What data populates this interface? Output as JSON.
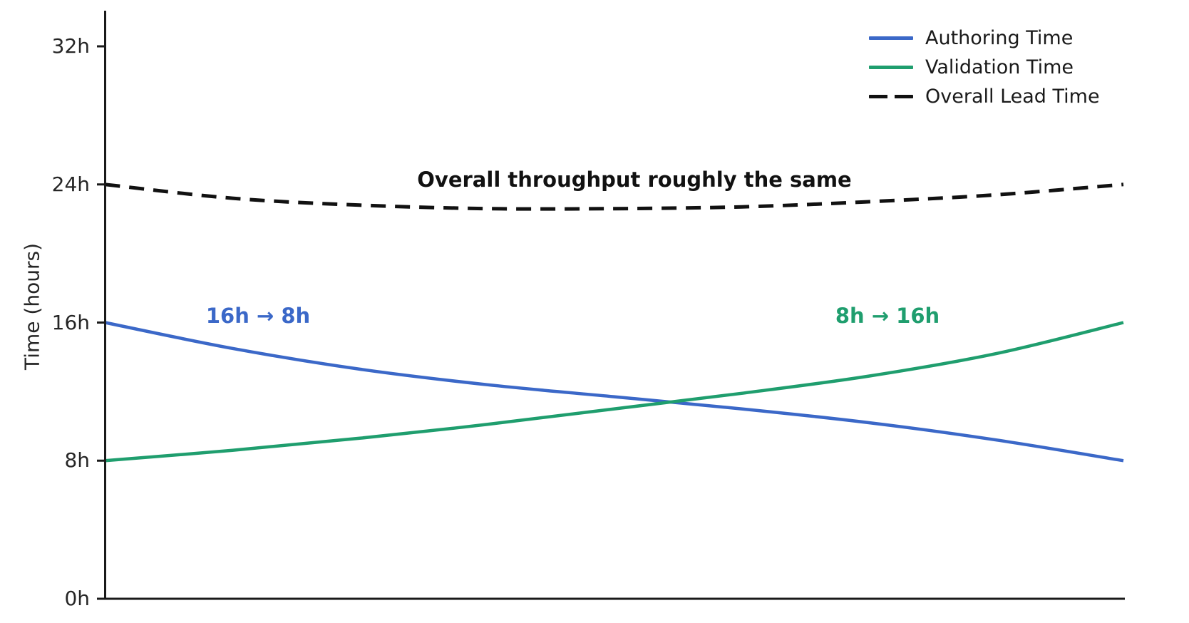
{
  "chart_data": {
    "type": "line",
    "title": "",
    "xlabel": "",
    "ylabel": "Time (hours)",
    "ytick_labels": [
      "0h",
      "8h",
      "16h",
      "24h",
      "32h"
    ],
    "ytick_values": [
      0,
      8,
      16,
      24,
      32
    ],
    "ylim": [
      0,
      34.1
    ],
    "xlim": [
      0,
      1
    ],
    "x_progress": [
      0,
      0.125,
      0.25,
      0.375,
      0.5,
      0.625,
      0.75,
      0.875,
      1
    ],
    "grid": false,
    "legend_position": "upper right",
    "series": [
      {
        "name": "Authoring Time",
        "color": "#3b68c8",
        "line_style": "solid",
        "start_value_hours": 16,
        "end_value_hours": 8,
        "values": [
          16,
          14.5,
          13.3,
          12.4,
          11.7,
          11.0,
          10.2,
          9.2,
          8.0
        ]
      },
      {
        "name": "Validation Time",
        "color": "#1f9e6e",
        "line_style": "solid",
        "start_value_hours": 8,
        "end_value_hours": 16,
        "values": [
          8.0,
          8.6,
          9.3,
          10.1,
          11.0,
          11.9,
          12.9,
          14.2,
          16.0
        ]
      },
      {
        "name": "Overall Lead Time",
        "color": "#111111",
        "line_style": "dashed",
        "start_value_hours": 24,
        "end_value_hours": 24,
        "values": [
          24.0,
          23.2,
          22.8,
          22.6,
          22.6,
          22.7,
          23.0,
          23.4,
          24.0
        ]
      }
    ],
    "annotations": [
      {
        "text": "Overall throughput roughly the same",
        "color": "#111111"
      },
      {
        "text": "16h → 8h",
        "color": "#3b68c8"
      },
      {
        "text": "8h → 16h",
        "color": "#1f9e6e"
      }
    ],
    "axis_color": "#1a1a1a"
  }
}
